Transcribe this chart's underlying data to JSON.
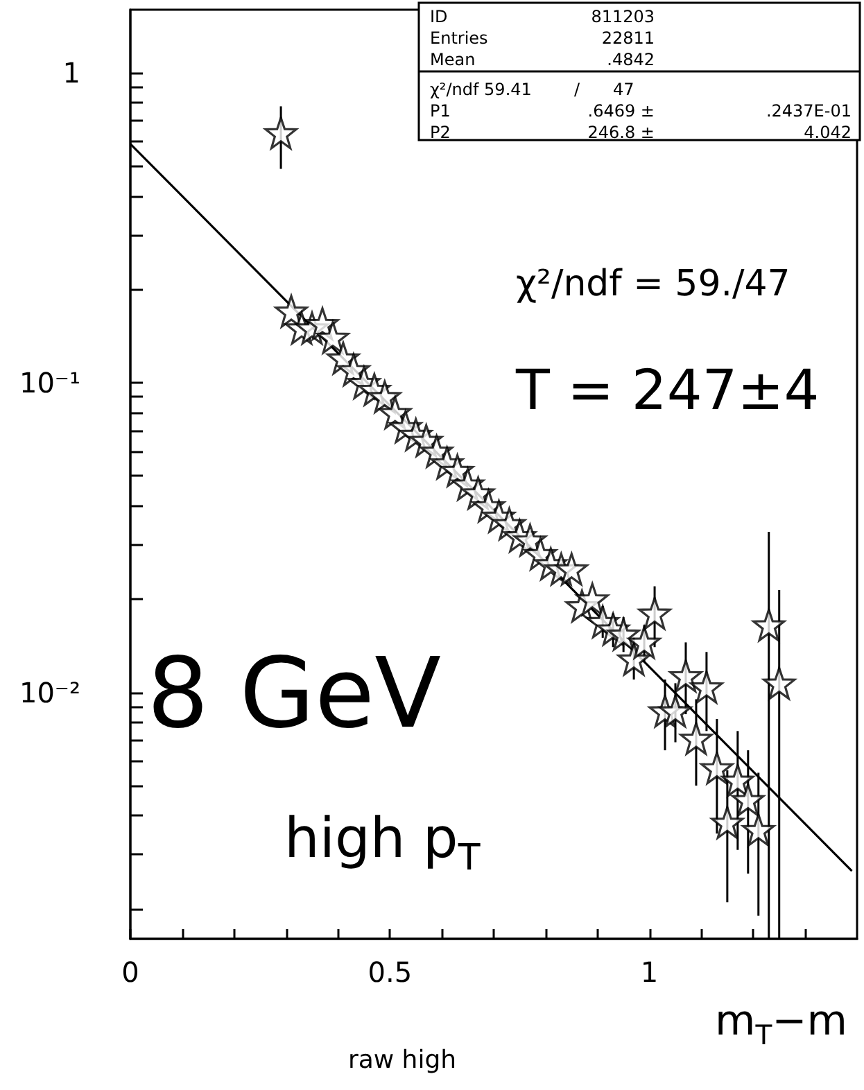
{
  "chart_data": {
    "type": "scatter",
    "title": "raw high",
    "xlabel": "m$_{T}$−m",
    "annotations": [
      "ID",
      "811203",
      "Entries",
      "22811",
      "Mean",
      ".4842",
      "χ²/ndf 59.41",
      "/",
      "47",
      "P1",
      ".6469 ±",
      ".2437E-01",
      "P2",
      "246.8 ±",
      "4.042",
      "χ²/ndf = 59./47",
      "T = 247±4",
      "8 GeV",
      "high p$_{T}$"
    ],
    "log": "y",
    "grid": false,
    "marker": "star",
    "xlim": [
      0,
      1.4
    ],
    "ylim": [
      0.0016,
      1.6
    ],
    "xticks": [
      0,
      {
        "value": 0.1,
        "label": null
      },
      {
        "value": 0.2,
        "label": null
      },
      {
        "value": 0.3,
        "label": null
      },
      {
        "value": 0.4,
        "label": null
      },
      0.5,
      {
        "value": 0.6,
        "label": null
      },
      {
        "value": 0.7,
        "label": null
      },
      {
        "value": 0.8,
        "label": null
      },
      {
        "value": 0.9,
        "label": null
      },
      1,
      {
        "value": 1.1,
        "label": null
      },
      {
        "value": 1.2,
        "label": null
      },
      {
        "value": 1.3,
        "label": null
      }
    ],
    "yticks": [
      {
        "value": 0.002,
        "label": null
      },
      {
        "value": 0.003,
        "label": null
      },
      {
        "value": 0.004,
        "label": null
      },
      {
        "value": 0.005,
        "label": null
      },
      {
        "value": 0.006,
        "label": null
      },
      {
        "value": 0.007,
        "label": null
      },
      {
        "value": 0.008,
        "label": null
      },
      {
        "value": 0.009,
        "label": null
      },
      {
        "value": 0.01,
        "label": "10⁻²"
      },
      {
        "value": 0.02,
        "label": null
      },
      {
        "value": 0.03,
        "label": null
      },
      {
        "value": 0.04,
        "label": null
      },
      {
        "value": 0.05,
        "label": null
      },
      {
        "value": 0.06,
        "label": null
      },
      {
        "value": 0.07,
        "label": null
      },
      {
        "value": 0.08,
        "label": null
      },
      {
        "value": 0.09,
        "label": null
      },
      {
        "value": 0.1,
        "label": "10⁻¹"
      },
      {
        "value": 0.2,
        "label": null
      },
      {
        "value": 0.3,
        "label": null
      },
      {
        "value": 0.4,
        "label": null
      },
      {
        "value": 0.5,
        "label": null
      },
      {
        "value": 0.6,
        "label": null
      },
      {
        "value": 0.7,
        "label": null
      },
      {
        "value": 0.8,
        "label": null
      },
      {
        "value": 0.9,
        "label": null
      },
      1
    ],
    "series": [
      {
        "color": "#000000",
        "x": [
          0.29,
          0.31,
          0.33,
          0.35,
          0.37,
          0.39,
          0.41,
          0.43,
          0.45,
          0.47,
          0.49,
          0.51,
          0.53,
          0.55,
          0.57,
          0.59,
          0.61,
          0.63,
          0.65,
          0.67,
          0.69,
          0.71,
          0.73,
          0.75,
          0.77,
          0.79,
          0.81,
          0.83,
          0.85,
          0.87,
          0.89,
          0.91,
          0.93,
          0.95,
          0.97,
          0.99,
          1.01,
          1.03,
          1.05,
          1.07,
          1.09,
          1.11,
          1.13,
          1.15,
          1.17,
          1.19,
          1.21,
          1.23,
          1.25
        ],
        "values": [
          0.64,
          0.17,
          0.15,
          0.15,
          0.155,
          0.14,
          0.12,
          0.11,
          0.1,
          0.095,
          0.09,
          0.08,
          0.072,
          0.068,
          0.065,
          0.06,
          0.055,
          0.052,
          0.047,
          0.044,
          0.04,
          0.037,
          0.035,
          0.032,
          0.031,
          0.028,
          0.026,
          0.025,
          0.025,
          0.019,
          0.02,
          0.0169,
          0.016,
          0.0154,
          0.0128,
          0.0145,
          0.018,
          0.0087,
          0.0087,
          0.0113,
          0.0071,
          0.0104,
          0.0057,
          0.0038,
          0.0052,
          0.0045,
          0.0036,
          0.0165,
          0.0107
        ],
        "errors": [
          [
            0.49,
            0.78
          ],
          null,
          null,
          null,
          null,
          null,
          null,
          null,
          null,
          null,
          null,
          null,
          null,
          null,
          null,
          null,
          null,
          null,
          null,
          null,
          null,
          null,
          null,
          null,
          null,
          null,
          null,
          null,
          null,
          null,
          null,
          [
            0.015,
            0.019
          ],
          [
            0.014,
            0.018
          ],
          [
            0.0135,
            0.0175
          ],
          [
            0.011,
            0.015
          ],
          [
            0.0125,
            0.0165
          ],
          [
            0.014,
            0.022
          ],
          [
            0.0065,
            0.011
          ],
          [
            0.0069,
            0.0107
          ],
          [
            0.0085,
            0.0145
          ],
          [
            0.005,
            0.0095
          ],
          [
            0.0075,
            0.0135
          ],
          [
            0.0035,
            0.0082
          ],
          [
            0.0021,
            0.0056
          ],
          [
            0.0031,
            0.0075
          ],
          [
            0.0026,
            0.0065
          ],
          [
            0.0019,
            0.0055
          ],
          [
            0.0016,
            0.033
          ],
          [
            0.0016,
            0.0214
          ]
        ]
      },
      {
        "type": "line",
        "color": "#000000",
        "marker": "none",
        "line_style": "solid",
        "x": [
          0,
          1.39
        ],
        "values": [
          0.59,
          0.00265
        ]
      }
    ]
  }
}
